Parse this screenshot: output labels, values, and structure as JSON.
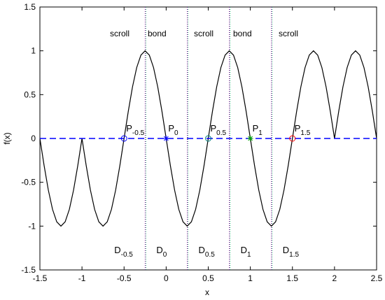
{
  "chart_data": {
    "type": "line",
    "xlabel": "x",
    "ylabel": "f(x)",
    "xlim": [
      -1.5,
      2.5
    ],
    "xticks": [
      -1.5,
      -1,
      -0.5,
      0,
      0.5,
      1,
      1.5,
      2,
      2.5
    ],
    "ylim": [
      -1.5,
      1.5
    ],
    "yticks": [
      -1.5,
      -1,
      -0.5,
      0,
      0.5,
      1,
      1.5
    ],
    "series": [
      {
        "color": "#000000",
        "style": "solid",
        "x": [
          -1.5,
          -1.45,
          -1.4,
          -1.35,
          -1.3,
          -1.25,
          -1.2,
          -1.15,
          -1.1,
          -1.05,
          -1,
          -0.95,
          -0.9,
          -0.85,
          -0.8,
          -0.75,
          -0.7,
          -0.65,
          -0.6,
          -0.55,
          -0.5,
          -0.45,
          -0.4,
          -0.35,
          -0.3,
          -0.25,
          -0.2,
          -0.15,
          -0.1,
          -0.05,
          0,
          0.05,
          0.1,
          0.15,
          0.2,
          0.25,
          0.3,
          0.35,
          0.4,
          0.45,
          0.5,
          0.55,
          0.6,
          0.65,
          0.7,
          0.75,
          0.8,
          0.85,
          0.9,
          0.95,
          1,
          1.05,
          1.1,
          1.15,
          1.2,
          1.25,
          1.3,
          1.35,
          1.4,
          1.45,
          1.5,
          1.55,
          1.6,
          1.65,
          1.7,
          1.75,
          1.8,
          1.85,
          1.9,
          1.95,
          2,
          2.05,
          2.1,
          2.15,
          2.2,
          2.25,
          2.3,
          2.35,
          2.4,
          2.45,
          2.5
        ],
        "values": [
          0,
          -0.309,
          -0.588,
          -0.809,
          -0.951,
          -1,
          -0.951,
          -0.809,
          -0.588,
          -0.309,
          0,
          -0.309,
          -0.588,
          -0.809,
          -0.951,
          -1,
          -0.951,
          -0.809,
          -0.588,
          -0.309,
          0,
          0.309,
          0.588,
          0.809,
          0.951,
          1,
          0.951,
          0.809,
          0.588,
          0.309,
          0,
          -0.309,
          -0.588,
          -0.809,
          -0.951,
          -1,
          -0.951,
          -0.809,
          -0.588,
          -0.309,
          0,
          0.309,
          0.588,
          0.809,
          0.951,
          1,
          0.951,
          0.809,
          0.588,
          0.309,
          0,
          -0.309,
          -0.588,
          -0.809,
          -0.951,
          -1,
          -0.951,
          -0.809,
          -0.588,
          -0.309,
          0,
          0.309,
          0.588,
          0.809,
          0.951,
          1,
          0.951,
          0.809,
          0.588,
          0.309,
          0,
          0.309,
          0.588,
          0.809,
          0.951,
          1,
          0.951,
          0.809,
          0.588,
          0.309,
          0
        ]
      },
      {
        "color": "#0000ff",
        "style": "dashed",
        "x": [
          -1.5,
          2.5
        ],
        "values": [
          0,
          0
        ]
      }
    ],
    "vlines": [
      -0.25,
      0.25,
      0.75,
      1.25
    ],
    "regions": [
      "scroll",
      "bond",
      "scroll",
      "bond",
      "scroll"
    ],
    "points": [
      {
        "x": -0.5,
        "y": 0,
        "label": "P",
        "sub": "-0.5",
        "color": "#0000ff",
        "marker": "circle"
      },
      {
        "x": 0,
        "y": 0,
        "label": "P",
        "sub": "0",
        "color": "#0000ff",
        "marker": "star"
      },
      {
        "x": 0.5,
        "y": 0,
        "label": "P",
        "sub": "0.5",
        "color": "#008080",
        "marker": "circle"
      },
      {
        "x": 1,
        "y": 0,
        "label": "P",
        "sub": "1",
        "color": "#00a000",
        "marker": "star"
      },
      {
        "x": 1.5,
        "y": 0,
        "label": "P",
        "sub": "1.5",
        "color": "#ff0000",
        "marker": "circle"
      }
    ],
    "domains": [
      {
        "label": "D",
        "sub": "-0.5"
      },
      {
        "label": "D",
        "sub": "0"
      },
      {
        "label": "D",
        "sub": "0.5"
      },
      {
        "label": "D",
        "sub": "1"
      },
      {
        "label": "D",
        "sub": "1.5"
      }
    ]
  }
}
